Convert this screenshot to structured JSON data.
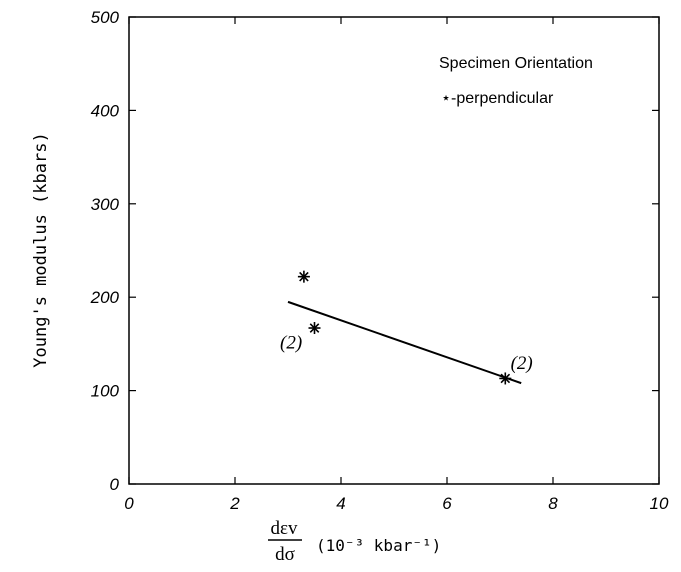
{
  "chart_data": {
    "type": "scatter",
    "xlabel_fraction": {
      "numerator": "dεv",
      "denominator": "dσ"
    },
    "xlabel_units": "(10⁻³ kbar⁻¹)",
    "ylabel": "Young's modulus  (kbars)",
    "xlim": [
      0,
      10
    ],
    "ylim": [
      0,
      500
    ],
    "x_ticks": [
      "0",
      "2",
      "4",
      "6",
      "8",
      "10"
    ],
    "y_ticks": [
      "0",
      "100",
      "200",
      "300",
      "400",
      "500"
    ],
    "legend": {
      "title": "Specimen Orientation",
      "entry": "⋆-perpendicular"
    },
    "series": [
      {
        "marker": "asterisk",
        "points": [
          {
            "x": 3.3,
            "y": 222
          },
          {
            "x": 3.5,
            "y": 167
          },
          {
            "x": 7.1,
            "y": 113
          }
        ]
      }
    ],
    "fit_line": {
      "x": [
        3.0,
        7.4
      ],
      "y": [
        195,
        108
      ]
    },
    "annotations": [
      {
        "text": "(2)",
        "x": 2.85,
        "y": 145
      },
      {
        "text": "(2)",
        "x": 7.2,
        "y": 123
      }
    ]
  }
}
